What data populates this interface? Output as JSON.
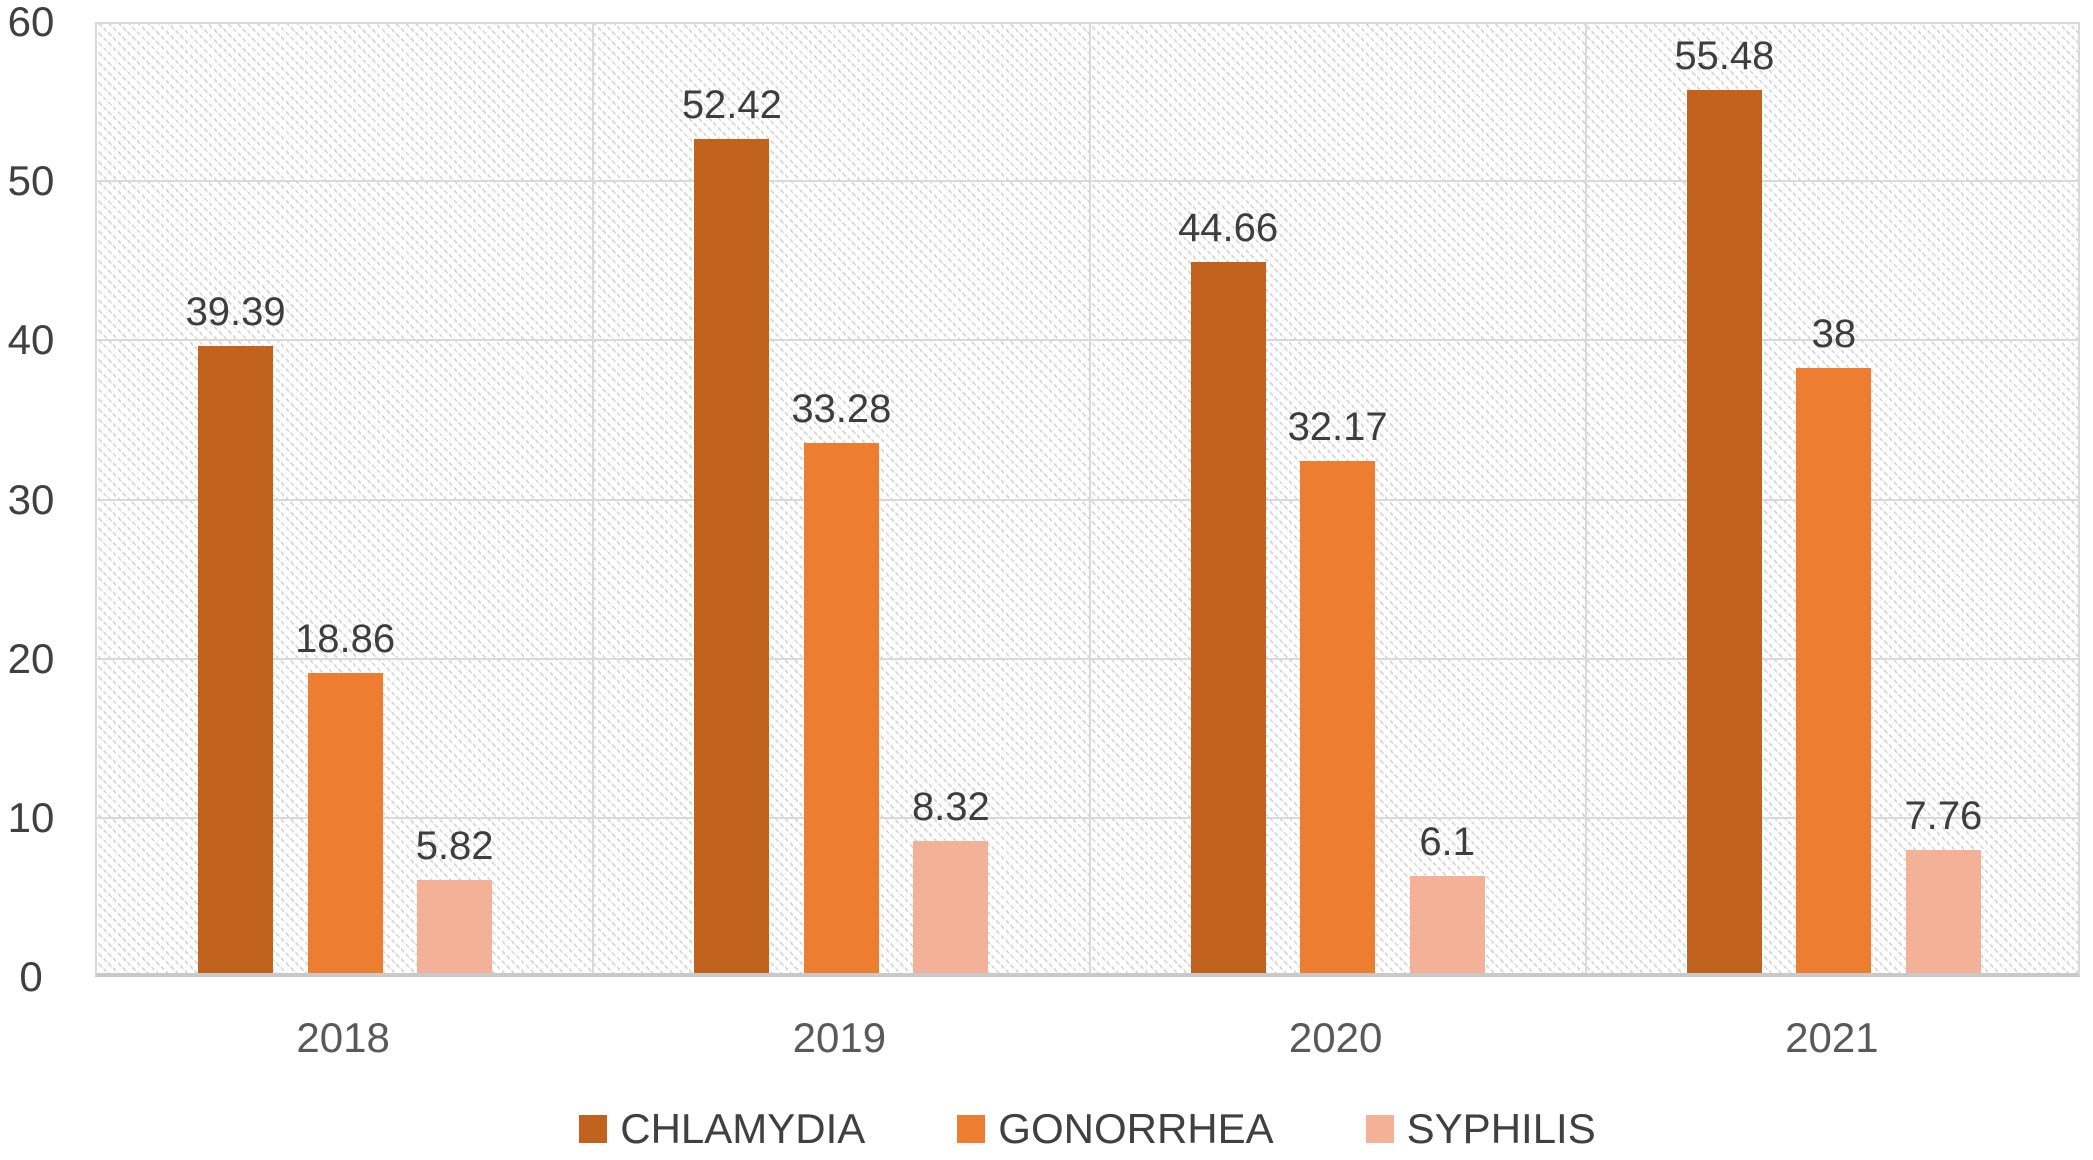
{
  "chart_data": {
    "type": "bar",
    "title": "",
    "xlabel": "",
    "ylabel": "",
    "categories": [
      "2018",
      "2019",
      "2020",
      "2021"
    ],
    "series": [
      {
        "name": "CHLAMYDIA",
        "color": "#c1621f",
        "values": [
          39.39,
          52.42,
          44.66,
          55.48
        ]
      },
      {
        "name": "GONORRHEA",
        "color": "#ed7d31",
        "values": [
          18.86,
          33.28,
          32.17,
          38
        ]
      },
      {
        "name": "SYPHILIS",
        "color": "#f3b198",
        "values": [
          5.82,
          8.32,
          6.1,
          7.76
        ]
      }
    ],
    "ylim": [
      0,
      60
    ],
    "yticks": [
      0,
      10,
      20,
      30,
      40,
      50,
      60
    ],
    "grid": true,
    "data_labels": true,
    "legend_position": "bottom",
    "plot_background": "diagonal-dotted-hatch"
  },
  "style": {
    "grid_color": "#d9d9d9",
    "separator_color": "#d9d9d9",
    "axis_line_color": "#c9c9c9",
    "tick_text_color": "#404040",
    "category_text_color": "#595959",
    "value_text_color": "#3d3d3d",
    "legend_text_color": "#404040",
    "hatch_dot_color": "#d5d5d5",
    "background": "#ffffff"
  }
}
